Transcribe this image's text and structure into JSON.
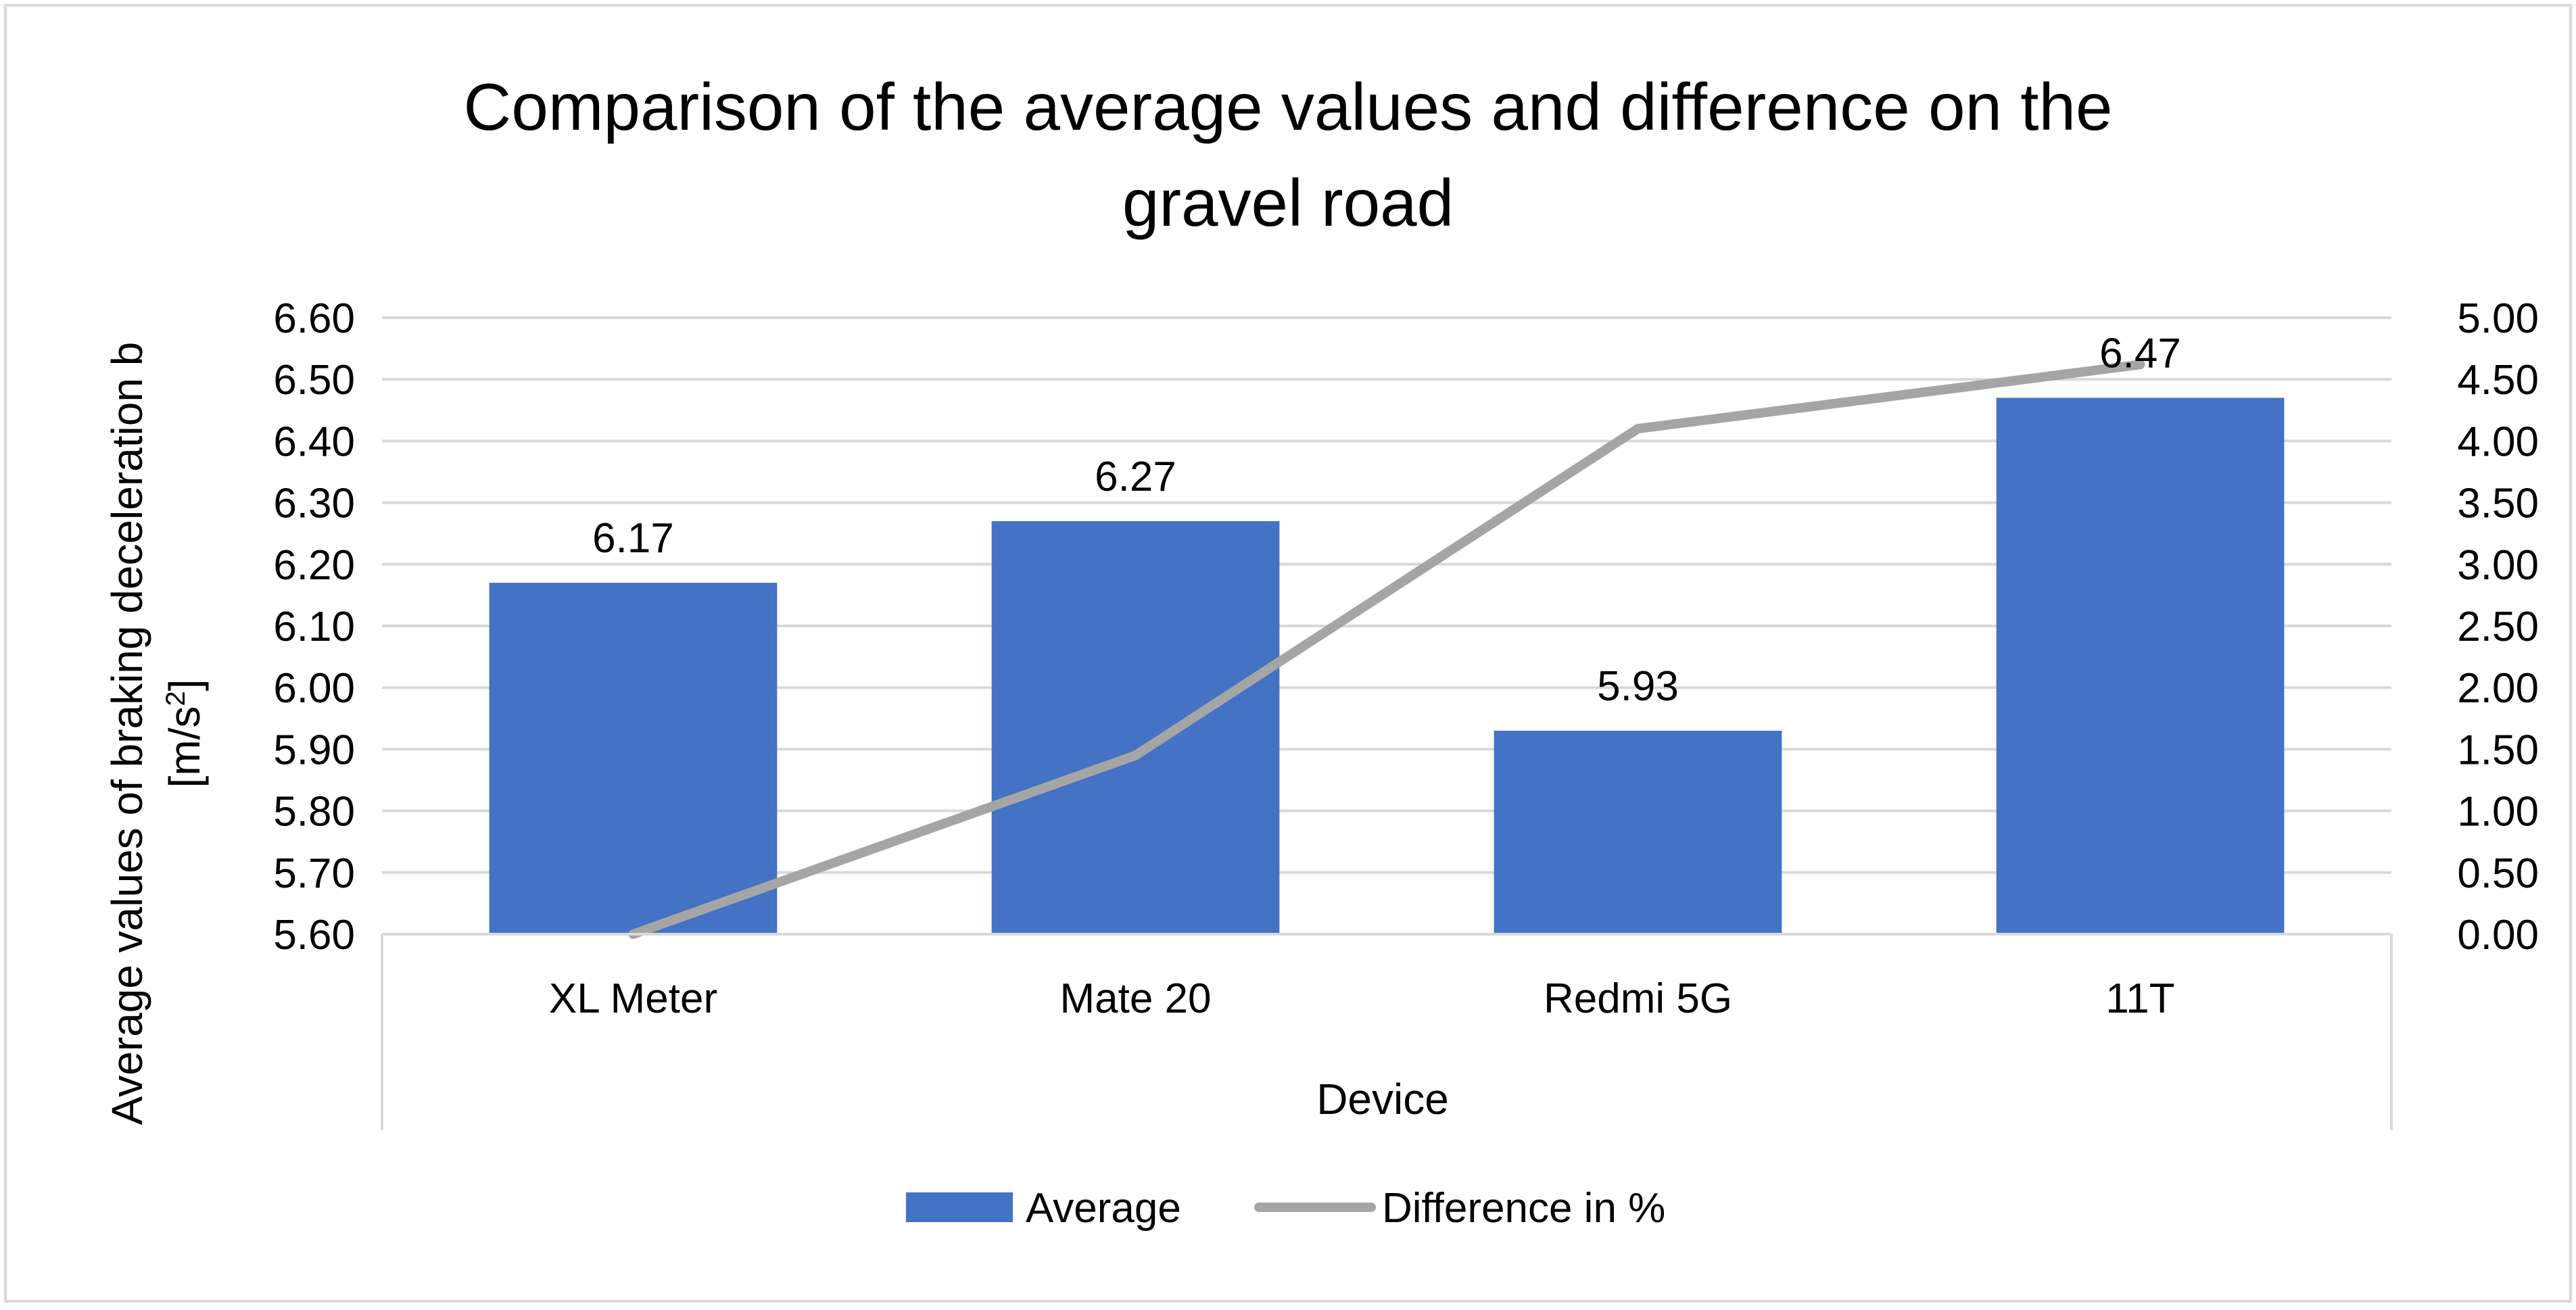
{
  "chart_data": {
    "type": "bar",
    "title": "Comparison of the average values and difference on the gravel road",
    "title_lines": [
      "Comparison of the average values and difference on the",
      "gravel road"
    ],
    "xlabel": "Device",
    "ylabel_line1": "Average values of braking deceleration b",
    "ylabel_line2_prefix": "[m/s",
    "ylabel_line2_sup": "2",
    "ylabel_line2_suffix": "]",
    "categories": [
      "XL Meter",
      "Mate 20",
      "Redmi 5G",
      "11T"
    ],
    "series": [
      {
        "name": "Average",
        "type": "bar",
        "axis": "left",
        "color": "#4472C4",
        "values": [
          6.17,
          6.27,
          5.93,
          6.47
        ],
        "labels": [
          "6.17",
          "6.27",
          "5.93",
          "6.47"
        ]
      },
      {
        "name": "Difference in %",
        "type": "line",
        "axis": "right",
        "color": "#A5A5A5",
        "values": [
          0.0,
          1.45,
          4.1,
          4.62
        ]
      }
    ],
    "y_left": {
      "min": 5.6,
      "max": 6.6,
      "ticks": [
        "5.60",
        "5.70",
        "5.80",
        "5.90",
        "6.00",
        "6.10",
        "6.20",
        "6.30",
        "6.40",
        "6.50",
        "6.60"
      ]
    },
    "y_right": {
      "min": 0,
      "max": 5,
      "ticks": [
        "0.00",
        "0.50",
        "1.00",
        "1.50",
        "2.00",
        "2.50",
        "3.00",
        "3.50",
        "4.00",
        "4.50",
        "5.00"
      ]
    },
    "grid": true,
    "legend_position": "bottom",
    "colors": {
      "grid": "#D9D9D9",
      "frame": "#D9D9D9"
    }
  }
}
